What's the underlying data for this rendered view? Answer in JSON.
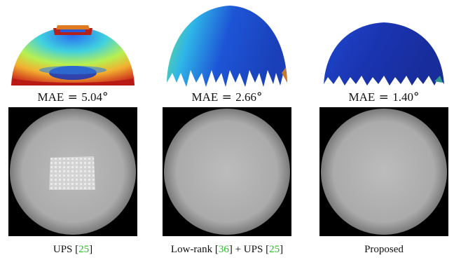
{
  "panels": [
    {
      "mae_label": "MAE",
      "mae_value": "5.04",
      "caption": {
        "method": "UPS",
        "ref": "25"
      }
    },
    {
      "mae_label": "MAE",
      "mae_value": "2.66",
      "caption": {
        "method1": "Low-rank",
        "ref1": "36",
        "joiner": "+ UPS",
        "ref2": "25"
      }
    },
    {
      "mae_label": "MAE",
      "mae_value": "1.40",
      "caption": {
        "method": "Proposed"
      }
    }
  ],
  "colors": {
    "citation": "#22c322",
    "background": "#ffffff",
    "render_background": "#000000"
  }
}
